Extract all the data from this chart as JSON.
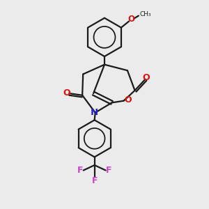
{
  "background_color": "#EBEBEB",
  "bond_color": "#1a1a1a",
  "oxygen_color": "#DD1111",
  "nitrogen_color": "#2222BB",
  "fluorine_color": "#CC44CC",
  "line_width": 1.6,
  "figsize": [
    3.0,
    3.0
  ],
  "dpi": 100,
  "xlim": [
    -1.4,
    1.6
  ],
  "ylim": [
    -2.0,
    3.6
  ]
}
